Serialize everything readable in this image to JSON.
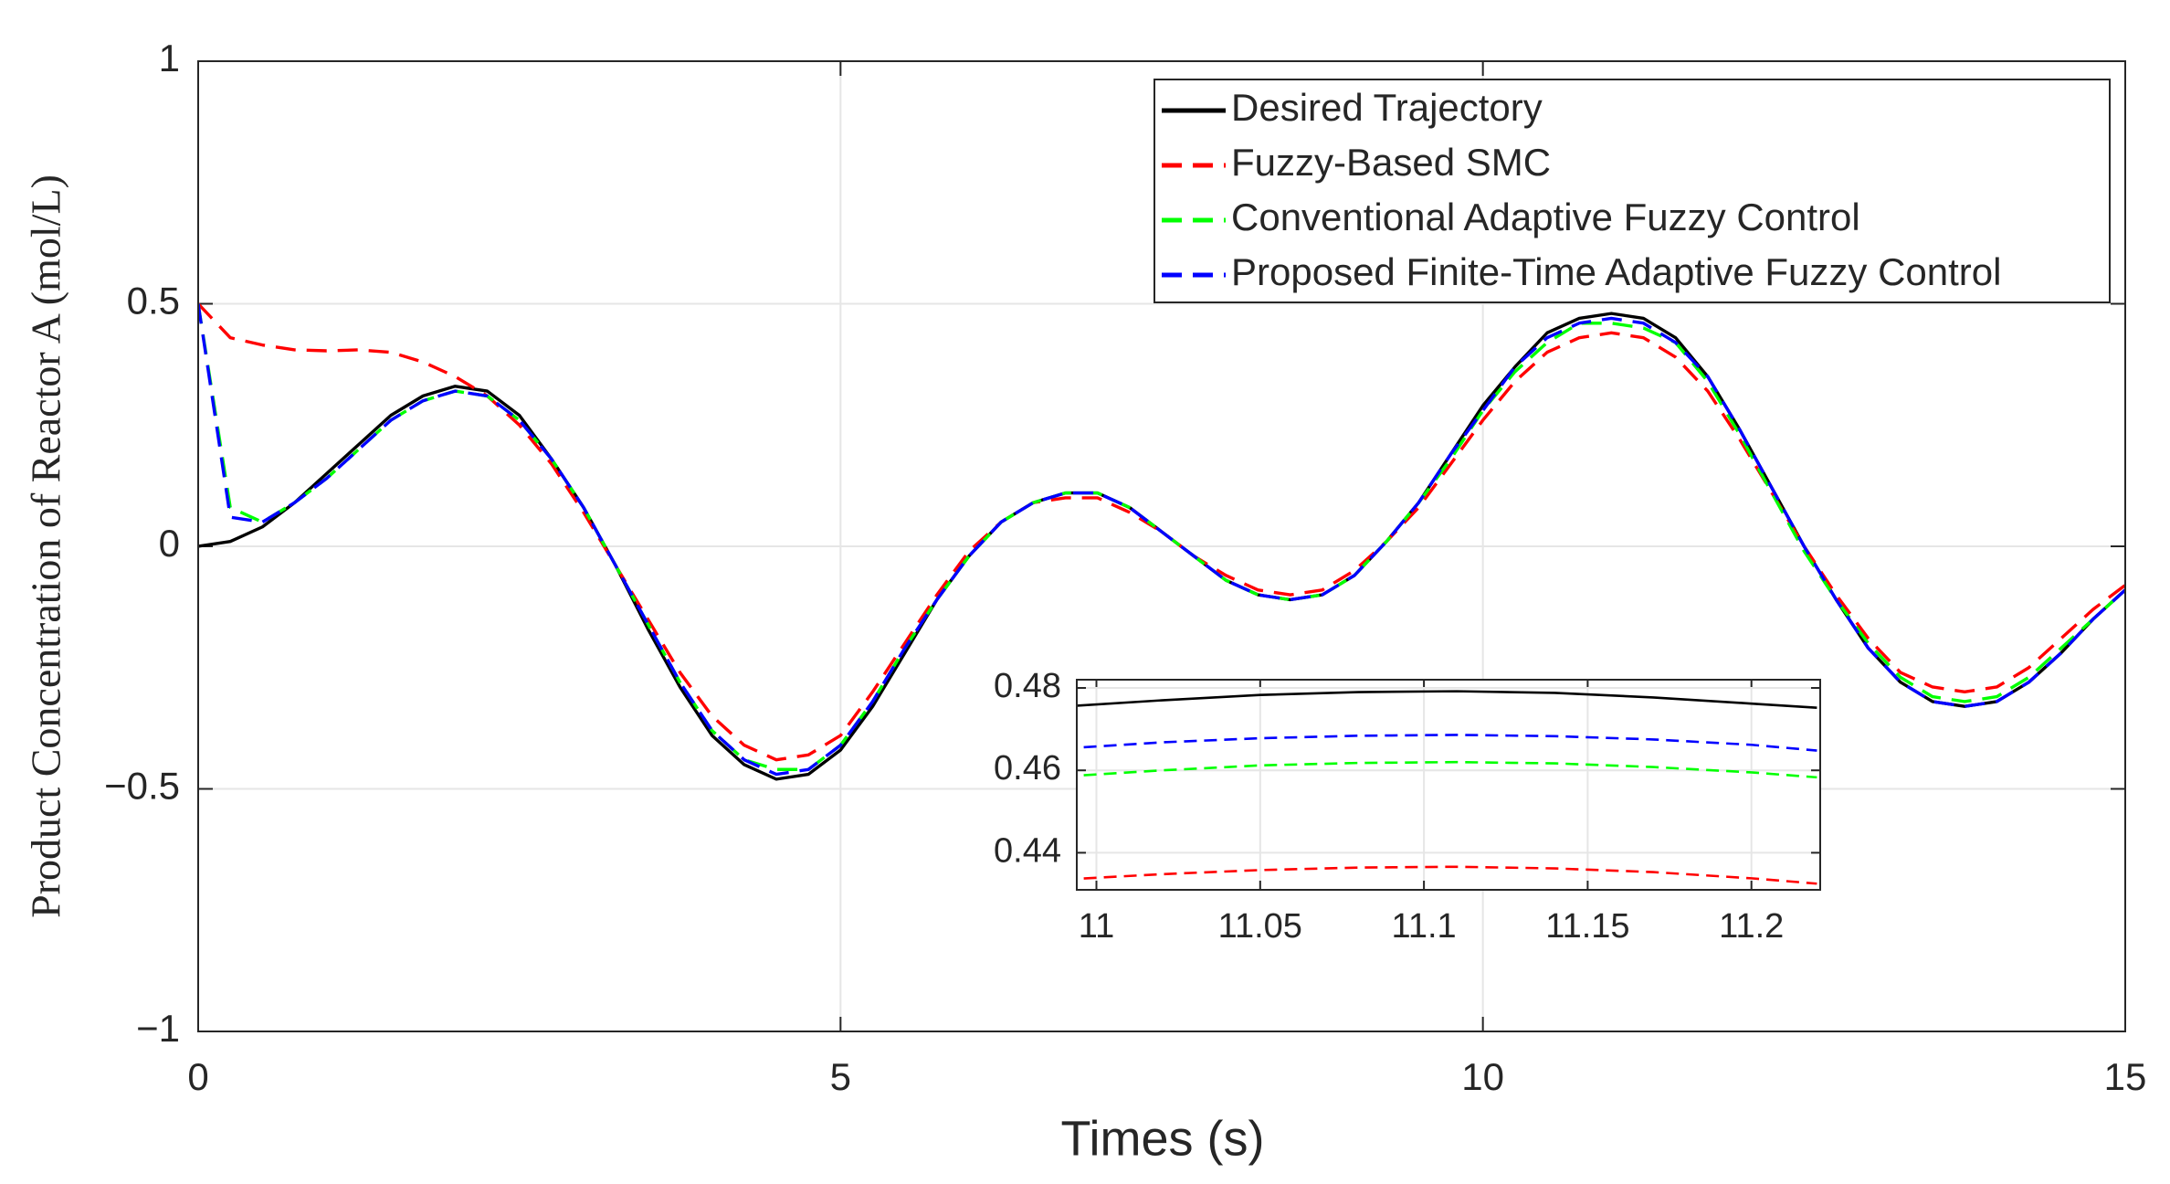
{
  "chart_data": [
    {
      "type": "line",
      "x_label": "Times (s)",
      "y_label": "Product Concentration of Reactor A (mol/L)",
      "xlim": [
        0,
        15
      ],
      "xticks": [
        0,
        5,
        10,
        15
      ],
      "ylim": [
        -1,
        1
      ],
      "yticks": [
        {
          "value": -1,
          "label": "−1"
        },
        {
          "value": -0.5,
          "label": "−0.5"
        },
        0,
        0.5,
        1
      ],
      "grid": true,
      "legend": "upper right",
      "x": [
        0,
        0.25,
        0.5,
        0.75,
        1,
        1.25,
        1.5,
        1.75,
        2,
        2.25,
        2.5,
        2.75,
        3,
        3.25,
        3.5,
        3.75,
        4,
        4.25,
        4.5,
        4.75,
        5,
        5.25,
        5.5,
        5.75,
        6,
        6.25,
        6.5,
        6.75,
        7,
        7.25,
        7.5,
        7.75,
        8,
        8.25,
        8.5,
        8.75,
        9,
        9.25,
        9.5,
        9.75,
        10,
        10.25,
        10.5,
        10.75,
        11,
        11.25,
        11.5,
        11.75,
        12,
        12.25,
        12.5,
        12.75,
        13,
        13.25,
        13.5,
        13.75,
        14,
        14.25,
        14.5,
        14.75,
        15
      ],
      "series": [
        {
          "name": "Desired Trajectory",
          "color": "#000000",
          "linestyle": "solid",
          "values": [
            0,
            0.01,
            0.04,
            0.09,
            0.15,
            0.21,
            0.27,
            0.31,
            0.33,
            0.32,
            0.27,
            0.18,
            0.08,
            -0.04,
            -0.17,
            -0.29,
            -0.39,
            -0.45,
            -0.48,
            -0.47,
            -0.42,
            -0.33,
            -0.22,
            -0.11,
            -0.02,
            0.05,
            0.09,
            0.11,
            0.11,
            0.08,
            0.03,
            -0.02,
            -0.07,
            -0.1,
            -0.11,
            -0.1,
            -0.06,
            0.01,
            0.09,
            0.19,
            0.29,
            0.37,
            0.44,
            0.47,
            0.48,
            0.47,
            0.43,
            0.35,
            0.24,
            0.12,
            0.0,
            -0.11,
            -0.21,
            -0.28,
            -0.32,
            -0.33,
            -0.32,
            -0.28,
            -0.22,
            -0.15,
            -0.09
          ]
        },
        {
          "name": "Fuzzy-Based SMC",
          "color": "#ff0000",
          "linestyle": "dashed",
          "values": [
            0.5,
            0.43,
            0.415,
            0.405,
            0.403,
            0.405,
            0.4,
            0.38,
            0.35,
            0.31,
            0.25,
            0.17,
            0.07,
            -0.04,
            -0.15,
            -0.26,
            -0.35,
            -0.41,
            -0.44,
            -0.43,
            -0.39,
            -0.3,
            -0.2,
            -0.1,
            -0.01,
            0.05,
            0.09,
            0.1,
            0.1,
            0.07,
            0.03,
            -0.02,
            -0.06,
            -0.09,
            -0.1,
            -0.09,
            -0.05,
            0.01,
            0.08,
            0.17,
            0.26,
            0.34,
            0.4,
            0.43,
            0.44,
            0.43,
            0.39,
            0.32,
            0.22,
            0.11,
            0.0,
            -0.1,
            -0.19,
            -0.26,
            -0.29,
            -0.3,
            -0.29,
            -0.25,
            -0.19,
            -0.13,
            -0.08
          ]
        },
        {
          "name": "Conventional Adaptive Fuzzy Control",
          "color": "#00ff00",
          "linestyle": "dashed",
          "values": [
            0.5,
            0.08,
            0.05,
            0.09,
            0.14,
            0.2,
            0.26,
            0.3,
            0.32,
            0.31,
            0.26,
            0.18,
            0.08,
            -0.04,
            -0.16,
            -0.28,
            -0.38,
            -0.44,
            -0.46,
            -0.46,
            -0.41,
            -0.32,
            -0.21,
            -0.11,
            -0.02,
            0.05,
            0.09,
            0.11,
            0.11,
            0.08,
            0.03,
            -0.02,
            -0.07,
            -0.1,
            -0.11,
            -0.1,
            -0.06,
            0.01,
            0.09,
            0.18,
            0.28,
            0.36,
            0.42,
            0.46,
            0.46,
            0.45,
            0.42,
            0.34,
            0.23,
            0.11,
            -0.01,
            -0.11,
            -0.2,
            -0.27,
            -0.31,
            -0.32,
            -0.31,
            -0.27,
            -0.21,
            -0.15,
            -0.09
          ]
        },
        {
          "name": "Proposed Finite-Time Adaptive Fuzzy Control",
          "color": "#0000ff",
          "linestyle": "dashed",
          "values": [
            0.5,
            0.06,
            0.05,
            0.09,
            0.14,
            0.2,
            0.26,
            0.3,
            0.32,
            0.31,
            0.26,
            0.18,
            0.08,
            -0.04,
            -0.16,
            -0.28,
            -0.38,
            -0.44,
            -0.47,
            -0.46,
            -0.41,
            -0.32,
            -0.21,
            -0.11,
            -0.02,
            0.05,
            0.09,
            0.11,
            0.11,
            0.08,
            0.03,
            -0.02,
            -0.07,
            -0.1,
            -0.11,
            -0.1,
            -0.06,
            0.01,
            0.09,
            0.19,
            0.28,
            0.37,
            0.43,
            0.46,
            0.47,
            0.46,
            0.42,
            0.35,
            0.24,
            0.12,
            0.0,
            -0.11,
            -0.21,
            -0.28,
            -0.32,
            -0.33,
            -0.32,
            -0.28,
            -0.22,
            -0.15,
            -0.09
          ]
        }
      ]
    },
    {
      "type": "line",
      "xlim": [
        10.994,
        11.221
      ],
      "xticks": [
        11,
        11.05,
        11.1,
        11.15,
        11.2
      ],
      "ylim": [
        0.431,
        0.482
      ],
      "yticks": [
        0.44,
        0.46,
        0.48
      ],
      "grid": true,
      "x": [
        10.99,
        11.02,
        11.05,
        11.08,
        11.11,
        11.14,
        11.17,
        11.2,
        11.22
      ],
      "series": [
        {
          "color": "#000000",
          "linestyle": "solid",
          "values": [
            0.4755,
            0.477,
            0.4783,
            0.479,
            0.4792,
            0.4788,
            0.4777,
            0.4762,
            0.4752
          ]
        },
        {
          "color": "#0000ff",
          "linestyle": "dashed",
          "values": [
            0.4653,
            0.4668,
            0.4678,
            0.4684,
            0.4686,
            0.4683,
            0.4675,
            0.4662,
            0.4648
          ]
        },
        {
          "color": "#00ff00",
          "linestyle": "dashed",
          "values": [
            0.4585,
            0.46,
            0.4612,
            0.4618,
            0.462,
            0.4617,
            0.4608,
            0.4595,
            0.4583
          ]
        },
        {
          "color": "#ff0000",
          "linestyle": "dashed",
          "values": [
            0.4335,
            0.4348,
            0.4358,
            0.4364,
            0.4366,
            0.4362,
            0.4353,
            0.4338,
            0.4325
          ]
        }
      ]
    }
  ]
}
